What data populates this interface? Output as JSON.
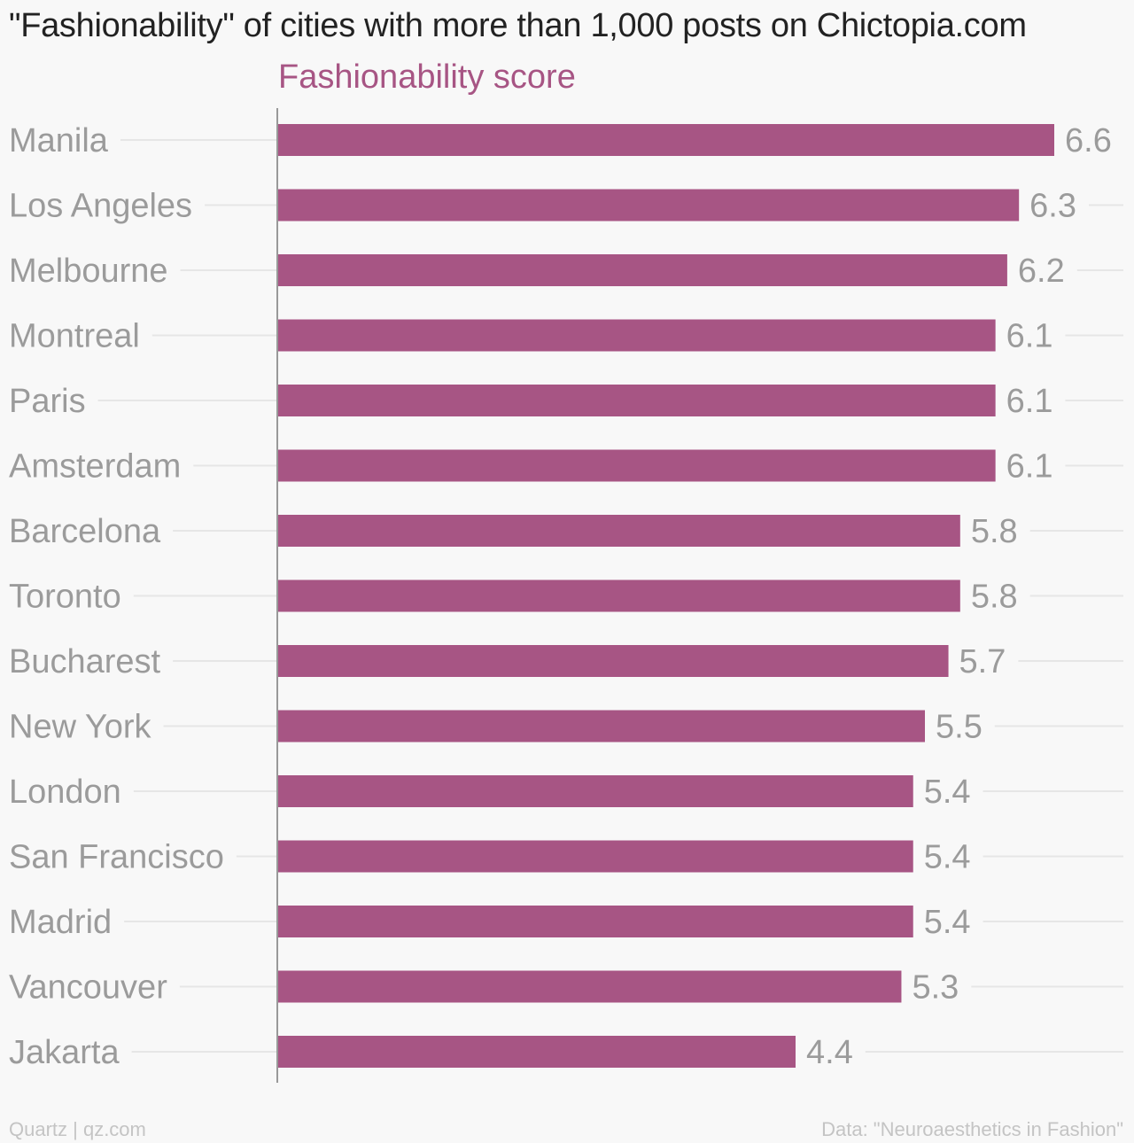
{
  "title": "\"Fashionability\" of cities with more than 1,000 posts on Chictopia.com",
  "footer": {
    "credit": "Quartz | qz.com",
    "source": "Data: \"Neuroaesthetics in Fashion\""
  },
  "colors": {
    "bar": "#a75584",
    "series_label": "#a75584",
    "category_label": "#9b9b9b",
    "value_label": "#9b9b9b",
    "gridline": "#e6e6e6",
    "axis": "#999999"
  },
  "chart_data": {
    "type": "bar",
    "orientation": "horizontal",
    "title": "\"Fashionability\" of cities with more than 1,000 posts on Chictopia.com",
    "categories": [
      "Manila",
      "Los Angeles",
      "Melbourne",
      "Montreal",
      "Paris",
      "Amsterdam",
      "Barcelona",
      "Toronto",
      "Bucharest",
      "New York",
      "London",
      "San Francisco",
      "Madrid",
      "Vancouver",
      "Jakarta"
    ],
    "series": [
      {
        "name": "Fashionability score",
        "values": [
          6.6,
          6.3,
          6.2,
          6.1,
          6.1,
          6.1,
          5.8,
          5.8,
          5.7,
          5.5,
          5.4,
          5.4,
          5.4,
          5.3,
          4.4
        ]
      }
    ],
    "value_labels": [
      "6.6",
      "6.3",
      "6.2",
      "6.1",
      "6.1",
      "6.1",
      "5.8",
      "5.8",
      "5.7",
      "5.5",
      "5.4",
      "5.4",
      "5.4",
      "5.3",
      "4.4"
    ],
    "xlim": [
      0,
      6.6
    ],
    "grid": "horizontal",
    "legend": "top"
  }
}
